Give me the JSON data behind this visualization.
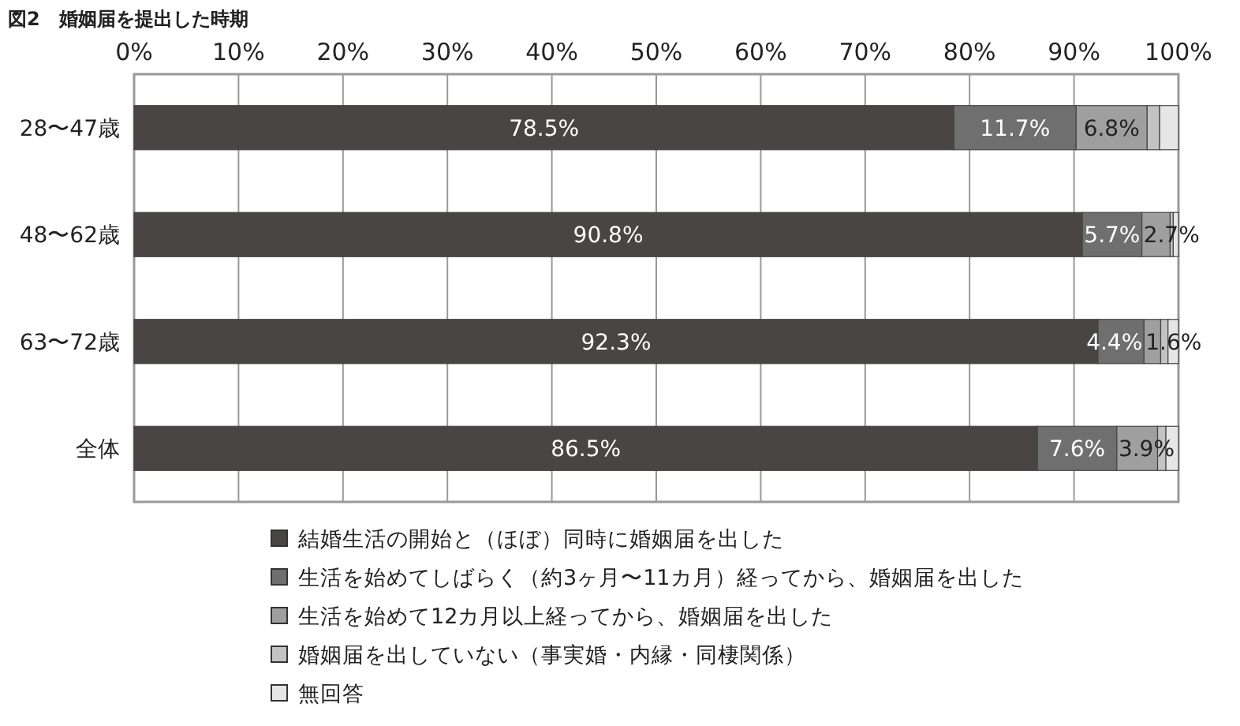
{
  "chart_data": {
    "type": "bar",
    "orientation": "horizontal",
    "stacked": true,
    "title": "図2　婚姻届を提出した時期",
    "categories": [
      "28〜47歳",
      "48〜62歳",
      "63〜72歳",
      "全体"
    ],
    "series": [
      {
        "name": "結婚生活の開始と（ほぼ）同時に婚姻届を出した",
        "color": "#4a4545",
        "values": [
          78.5,
          90.8,
          92.3,
          86.5
        ],
        "value_labels": [
          "78.5%",
          "90.8%",
          "92.3%",
          "86.5%"
        ]
      },
      {
        "name": "生活を始めてしばらく（約3ヶ月〜11カ月）経ってから、婚姻届を出した",
        "color": "#6f6f6f",
        "values": [
          11.7,
          5.7,
          4.4,
          7.6
        ],
        "value_labels": [
          "11.7%",
          "5.7%",
          "4.4%",
          "7.6%"
        ]
      },
      {
        "name": "生活を始めて12カ月以上経ってから、婚姻届を出した",
        "color": "#9f9f9f",
        "values": [
          6.8,
          2.7,
          1.6,
          3.9
        ],
        "value_labels": [
          "6.8%",
          "2.7%",
          "1.6%",
          "3.9%"
        ]
      },
      {
        "name": "婚姻届を出していない（事実婚・内縁・同棲関係）",
        "color": "#c3c3c3",
        "values": [
          1.2,
          0.3,
          0.7,
          0.8
        ]
      },
      {
        "name": "無回答",
        "color": "#e6e6e6",
        "values": [
          1.8,
          0.5,
          1.0,
          1.2
        ]
      }
    ],
    "xlim": [
      0,
      100
    ],
    "xticks": [
      {
        "value": 0,
        "label": "0%"
      },
      {
        "value": 10,
        "label": "10%"
      },
      {
        "value": 20,
        "label": "20%"
      },
      {
        "value": 30,
        "label": "30%"
      },
      {
        "value": 40,
        "label": "40%"
      },
      {
        "value": 50,
        "label": "50%"
      },
      {
        "value": 60,
        "label": "60%"
      },
      {
        "value": 70,
        "label": "70%"
      },
      {
        "value": 80,
        "label": "80%"
      },
      {
        "value": 90,
        "label": "90%"
      },
      {
        "value": 100,
        "label": "100%"
      }
    ],
    "grid": "x",
    "legend": "bottom"
  }
}
